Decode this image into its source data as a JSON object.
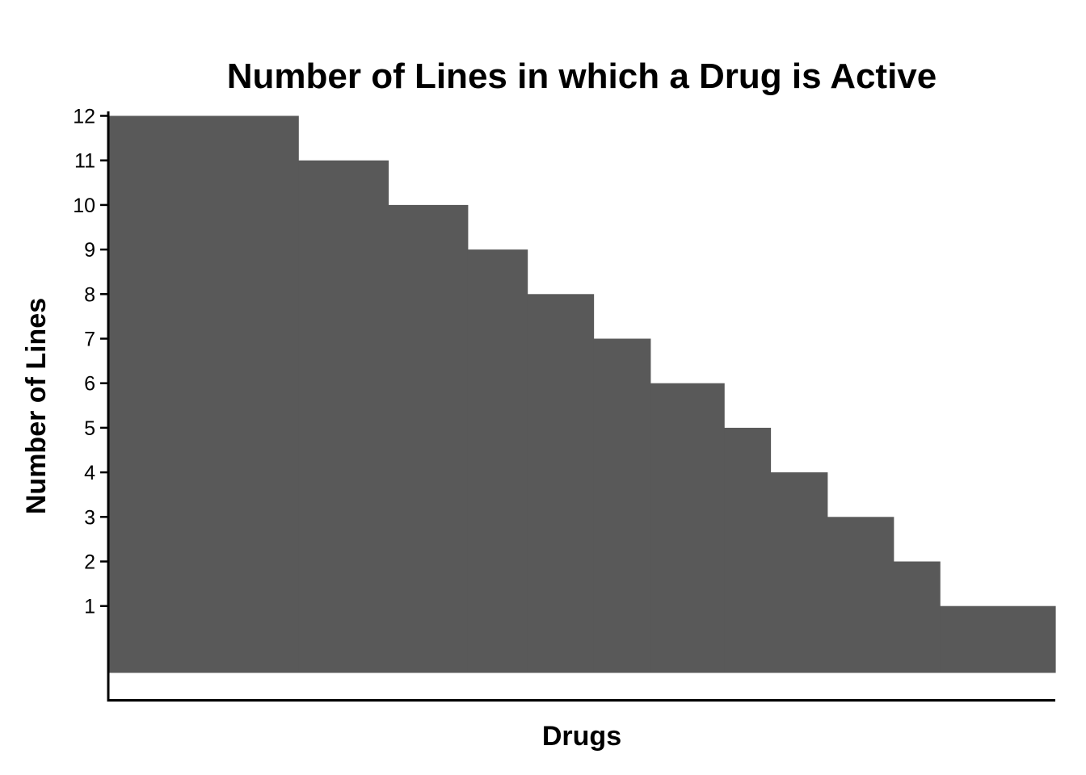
{
  "chart_data": {
    "type": "area",
    "title": "Number of Lines in which a Drug is Active",
    "xlabel": "Drugs",
    "ylabel": "Number of Lines",
    "yticks": [
      1,
      2,
      3,
      4,
      5,
      6,
      7,
      8,
      9,
      10,
      11,
      12
    ],
    "series": [
      {
        "x": [
          0,
          20,
          29.5,
          37.9,
          44.2,
          51.2,
          57.2,
          65,
          69.9,
          75.9,
          82.9,
          87.8,
          100
        ],
        "values": [
          12,
          11,
          10,
          9,
          8,
          7,
          6,
          5,
          4,
          3,
          2,
          1,
          0
        ]
      }
    ],
    "xlim": [
      0,
      100
    ],
    "ylim": [
      -0.6,
      12.6
    ],
    "grid": false,
    "colors": {
      "fill": "#595959",
      "axis": "#000000",
      "background": "#ffffff"
    }
  }
}
